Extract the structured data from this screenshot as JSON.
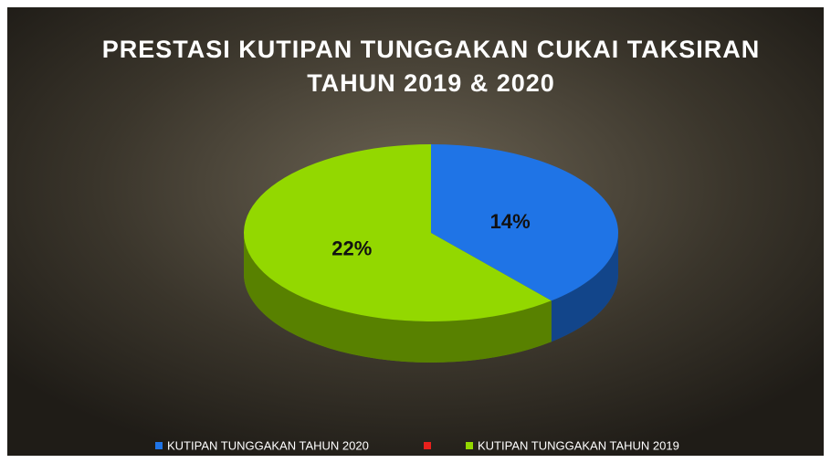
{
  "chart_data": {
    "type": "pie",
    "title": [
      "PRESTASI KUTIPAN TUNGGAKAN CUKAI TAKSIRAN",
      "TAHUN 2019 & 2020"
    ],
    "categories": [
      "KUTIPAN TUNGGAKAN TAHUN 2020",
      null,
      "KUTIPAN TUNGGAKAN TAHUN 2019"
    ],
    "values": [
      14,
      0,
      22
    ],
    "value_labels": [
      "14%",
      null,
      "22%"
    ],
    "colors": [
      "#1f74e6",
      "#e8201c",
      "#93d800"
    ],
    "legend": "bottom"
  }
}
